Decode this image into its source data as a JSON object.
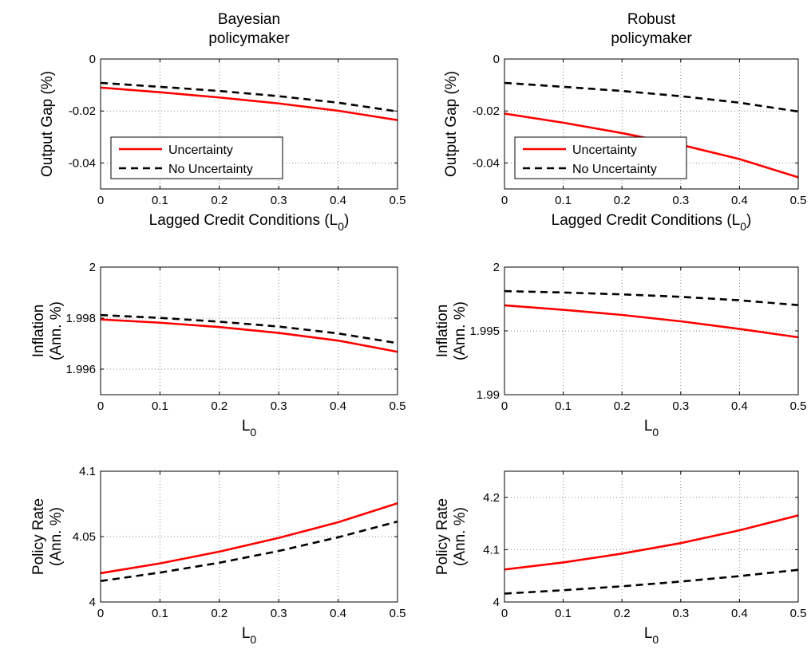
{
  "chart_data": [
    {
      "type": "line",
      "panel": "bayesian-output-gap",
      "title": [
        "Bayesian",
        "policymaker"
      ],
      "ylabel": [
        "Output Gap (%)"
      ],
      "xlabel": "Lagged Credit Conditions (L",
      "xlabel_sub": "0",
      "xlabel_suffix": ")",
      "xlim": [
        0,
        0.5
      ],
      "ylim": [
        -0.05,
        0
      ],
      "xticks": [
        0,
        0.1,
        0.2,
        0.3,
        0.4,
        0.5
      ],
      "xtick_labels": [
        "0",
        "0.1",
        "0.2",
        "0.3",
        "0.4",
        "0.5"
      ],
      "yticks": [
        -0.04,
        -0.02,
        0
      ],
      "ytick_labels": [
        "-0.04",
        "-0.02",
        "0"
      ],
      "grid": true,
      "legend": {
        "placement": "lower-left",
        "entries": [
          "Uncertainty",
          "No Uncertainty"
        ]
      },
      "x": [
        0,
        0.1,
        0.2,
        0.3,
        0.4,
        0.5
      ],
      "series": [
        {
          "name": "Uncertainty",
          "color": "#ff0000",
          "style": "solid",
          "values": [
            -0.011,
            -0.0128,
            -0.0148,
            -0.0171,
            -0.0199,
            -0.0235
          ]
        },
        {
          "name": "No Uncertainty",
          "color": "#000000",
          "style": "dashed",
          "values": [
            -0.0092,
            -0.0107,
            -0.0123,
            -0.0143,
            -0.0168,
            -0.0202
          ]
        }
      ]
    },
    {
      "type": "line",
      "panel": "robust-output-gap",
      "title": [
        "Robust",
        "policymaker"
      ],
      "ylabel": [
        "Output Gap (%)"
      ],
      "xlabel": "Lagged Credit Conditions (L",
      "xlabel_sub": "0",
      "xlabel_suffix": ")",
      "xlim": [
        0,
        0.5
      ],
      "ylim": [
        -0.05,
        0
      ],
      "xticks": [
        0,
        0.1,
        0.2,
        0.3,
        0.4,
        0.5
      ],
      "xtick_labels": [
        "0",
        "0.1",
        "0.2",
        "0.3",
        "0.4",
        "0.5"
      ],
      "yticks": [
        -0.04,
        -0.02,
        0
      ],
      "ytick_labels": [
        "-0.04",
        "-0.02",
        "0"
      ],
      "grid": true,
      "legend": {
        "placement": "lower-left",
        "entries": [
          "Uncertainty",
          "No Uncertainty"
        ]
      },
      "x": [
        0,
        0.1,
        0.2,
        0.3,
        0.4,
        0.5
      ],
      "series": [
        {
          "name": "Uncertainty",
          "color": "#ff0000",
          "style": "solid",
          "values": [
            -0.021,
            -0.0245,
            -0.0285,
            -0.033,
            -0.0385,
            -0.0455
          ]
        },
        {
          "name": "No Uncertainty",
          "color": "#000000",
          "style": "dashed",
          "values": [
            -0.0092,
            -0.0107,
            -0.0123,
            -0.0143,
            -0.0168,
            -0.0202
          ]
        }
      ]
    },
    {
      "type": "line",
      "panel": "bayesian-inflation",
      "title": [],
      "ylabel": [
        "Inflation",
        "(Ann. %)"
      ],
      "xlabel": "L",
      "xlabel_sub": "0",
      "xlabel_suffix": "",
      "xlim": [
        0,
        0.5
      ],
      "ylim": [
        1.995,
        2
      ],
      "xticks": [
        0,
        0.1,
        0.2,
        0.3,
        0.4,
        0.5
      ],
      "xtick_labels": [
        "0",
        "0.1",
        "0.2",
        "0.3",
        "0.4",
        "0.5"
      ],
      "yticks": [
        1.996,
        1.998,
        2
      ],
      "ytick_labels": [
        "1.996",
        "1.998",
        "2"
      ],
      "grid": true,
      "x": [
        0,
        0.1,
        0.2,
        0.3,
        0.4,
        0.5
      ],
      "series": [
        {
          "name": "Uncertainty",
          "color": "#ff0000",
          "style": "solid",
          "values": [
            1.99795,
            1.99782,
            1.99765,
            1.99742,
            1.99712,
            1.99668
          ]
        },
        {
          "name": "No Uncertainty",
          "color": "#000000",
          "style": "dashed",
          "values": [
            1.99812,
            1.99801,
            1.99786,
            1.99767,
            1.9974,
            1.99702
          ]
        }
      ]
    },
    {
      "type": "line",
      "panel": "robust-inflation",
      "title": [],
      "ylabel": [
        "Inflation",
        "(Ann. %)"
      ],
      "xlabel": "L",
      "xlabel_sub": "0",
      "xlabel_suffix": "",
      "xlim": [
        0,
        0.5
      ],
      "ylim": [
        1.99,
        2
      ],
      "xticks": [
        0,
        0.1,
        0.2,
        0.3,
        0.4,
        0.5
      ],
      "xtick_labels": [
        "0",
        "0.1",
        "0.2",
        "0.3",
        "0.4",
        "0.5"
      ],
      "yticks": [
        1.99,
        1.995,
        2
      ],
      "ytick_labels": [
        "1.99",
        "1.995",
        "2"
      ],
      "grid": true,
      "x": [
        0,
        0.1,
        0.2,
        0.3,
        0.4,
        0.5
      ],
      "series": [
        {
          "name": "Uncertainty",
          "color": "#ff0000",
          "style": "solid",
          "values": [
            1.997,
            1.99665,
            1.99625,
            1.99575,
            1.99515,
            1.9945
          ]
        },
        {
          "name": "No Uncertainty",
          "color": "#000000",
          "style": "dashed",
          "values": [
            1.99812,
            1.99801,
            1.99786,
            1.99767,
            1.9974,
            1.99702
          ]
        }
      ]
    },
    {
      "type": "line",
      "panel": "bayesian-policy-rate",
      "title": [],
      "ylabel": [
        "Policy Rate",
        "(Ann. %)"
      ],
      "xlabel": "L",
      "xlabel_sub": "0",
      "xlabel_suffix": "",
      "xlim": [
        0,
        0.5
      ],
      "ylim": [
        4,
        4.1
      ],
      "xticks": [
        0,
        0.1,
        0.2,
        0.3,
        0.4,
        0.5
      ],
      "xtick_labels": [
        "0",
        "0.1",
        "0.2",
        "0.3",
        "0.4",
        "0.5"
      ],
      "yticks": [
        4,
        4.05,
        4.1
      ],
      "ytick_labels": [
        "4",
        "4.05",
        "4.1"
      ],
      "grid": true,
      "x": [
        0,
        0.1,
        0.2,
        0.3,
        0.4,
        0.5
      ],
      "series": [
        {
          "name": "Uncertainty",
          "color": "#ff0000",
          "style": "solid",
          "values": [
            4.022,
            4.0295,
            4.0385,
            4.049,
            4.061,
            4.0755
          ]
        },
        {
          "name": "No Uncertainty",
          "color": "#000000",
          "style": "dashed",
          "values": [
            4.016,
            4.0225,
            4.03,
            4.039,
            4.0495,
            4.0615
          ]
        }
      ]
    },
    {
      "type": "line",
      "panel": "robust-policy-rate",
      "title": [],
      "ylabel": [
        "Policy Rate",
        "(Ann. %)"
      ],
      "xlabel": "L",
      "xlabel_sub": "0",
      "xlabel_suffix": "",
      "xlim": [
        0,
        0.5
      ],
      "ylim": [
        4,
        4.25
      ],
      "xticks": [
        0,
        0.1,
        0.2,
        0.3,
        0.4,
        0.5
      ],
      "xtick_labels": [
        "0",
        "0.1",
        "0.2",
        "0.3",
        "0.4",
        "0.5"
      ],
      "yticks": [
        4,
        4.1,
        4.2
      ],
      "ytick_labels": [
        "4",
        "4.1",
        "4.2"
      ],
      "grid": true,
      "x": [
        0,
        0.1,
        0.2,
        0.3,
        0.4,
        0.5
      ],
      "series": [
        {
          "name": "Uncertainty",
          "color": "#ff0000",
          "style": "solid",
          "values": [
            4.062,
            4.0755,
            4.0925,
            4.1125,
            4.137,
            4.1655
          ]
        },
        {
          "name": "No Uncertainty",
          "color": "#000000",
          "style": "dashed",
          "values": [
            4.016,
            4.0225,
            4.03,
            4.039,
            4.0495,
            4.0615
          ]
        }
      ]
    }
  ]
}
